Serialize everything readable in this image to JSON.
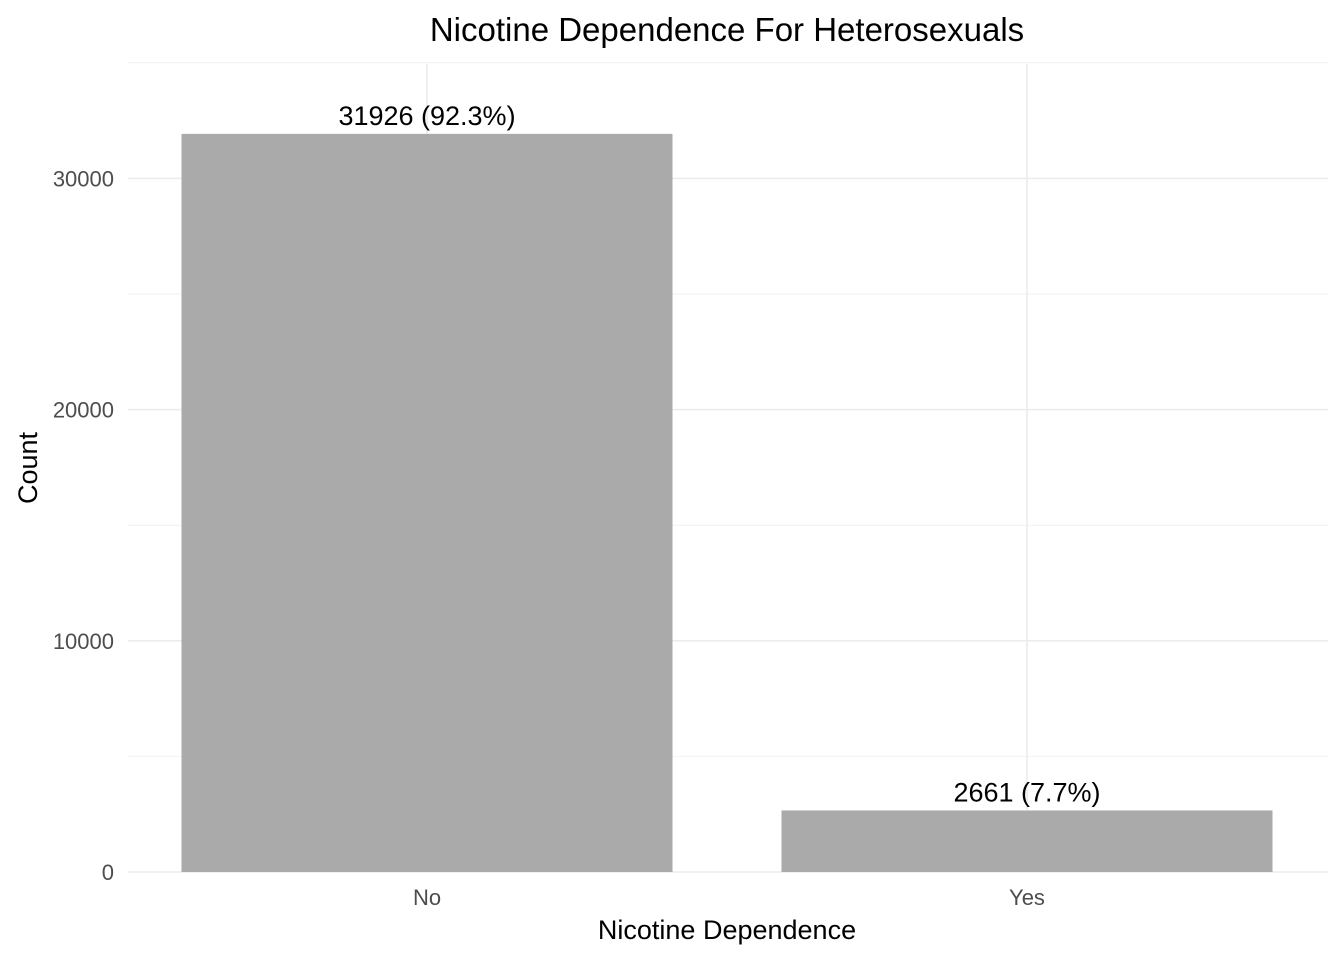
{
  "chart_data": {
    "type": "bar",
    "title": "Nicotine Dependence For Heterosexuals",
    "xlabel": "Nicotine Dependence",
    "ylabel": "Count",
    "categories": [
      "No",
      "Yes"
    ],
    "values": [
      31926,
      2661
    ],
    "data_labels": [
      "31926 (92.3%)",
      "2661 (7.7%)"
    ],
    "ylim": [
      0,
      35000
    ],
    "y_ticks": [
      0,
      10000,
      20000,
      30000
    ],
    "y_tick_labels": [
      "0",
      "10000",
      "20000",
      "30000"
    ],
    "y_minor_ticks": [
      5000,
      15000,
      25000,
      35000
    ],
    "grid": true,
    "legend": "none",
    "colors": {
      "bar": "#aaaaaa",
      "grid": "#ebebeb",
      "tick_text": "#4d4d4d",
      "text": "#000000",
      "background": "#ffffff"
    }
  }
}
